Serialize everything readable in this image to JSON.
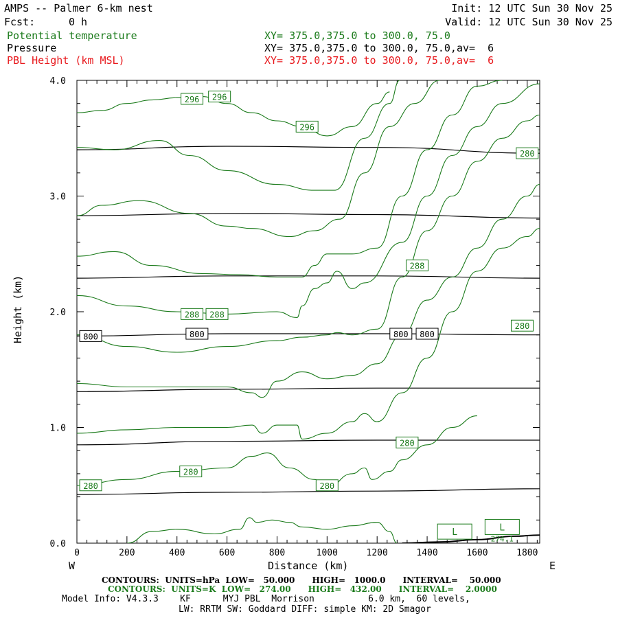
{
  "header": {
    "title": "AMPS -- Palmer 6-km nest",
    "fcst_label": "Fcst:",
    "fcst_value": "0 h",
    "init": "Init: 12 UTC Sun 30 Nov 25",
    "valid": "Valid: 12 UTC Sun 30 Nov 25",
    "fields": [
      {
        "name": "Potential temperature",
        "xy": "XY= 375.0,375.0 to 300.0, 75.0",
        "color": "#1a7a1a"
      },
      {
        "name": "Pressure",
        "xy": "XY= 375.0,375.0 to 300.0, 75.0,av=  6",
        "color": "#000000"
      },
      {
        "name": "PBL Height (km MSL)",
        "xy": "XY= 375.0,375.0 to 300.0, 75.0,av=  6",
        "color": "#e8181c"
      }
    ]
  },
  "footer": {
    "contours_p": "CONTOURS:  UNITS=hPa  LOW=   50.000      HIGH=   1000.0      INTERVAL=    50.000",
    "contours_t": "CONTOURS:  UNITS=K  LOW=   274.00      HIGH=   432.00      INTERVAL=    2.0000",
    "model_info": "Model Info: V4.3.3    KF      MYJ PBL  Morrison          6.0 km,  60 levels,",
    "model_info2": "LW: RRTM SW: Goddard DIFF: simple KM: 2D Smagor"
  },
  "chart_data": {
    "type": "line",
    "xlabel": "Distance (km)",
    "ylabel": "Height (km)",
    "xlim": [
      0,
      1850
    ],
    "ylim": [
      0,
      4.0
    ],
    "x_ticks": [
      "0",
      "200",
      "400",
      "600",
      "800",
      "1000",
      "1200",
      "1400",
      "1600",
      "1800"
    ],
    "y_ticks": [
      "0.0",
      "1.0",
      "2.0",
      "3.0",
      "4.0"
    ],
    "x_end_labels": {
      "left": "W",
      "right": "E"
    },
    "pressure_contours": {
      "color": "#000000",
      "lines": [
        {
          "x": [
            0,
            600,
            1200,
            1850
          ],
          "y": [
            0.42,
            0.44,
            0.45,
            0.47
          ]
        },
        {
          "x": [
            0,
            600,
            1200,
            1850
          ],
          "y": [
            0.85,
            0.88,
            0.89,
            0.89
          ]
        },
        {
          "x": [
            0,
            600,
            1200,
            1850
          ],
          "y": [
            1.31,
            1.33,
            1.34,
            1.34
          ]
        },
        {
          "x": [
            0,
            600,
            1200,
            1850
          ],
          "y": [
            1.79,
            1.81,
            1.81,
            1.8
          ]
        },
        {
          "x": [
            0,
            600,
            1200,
            1850
          ],
          "y": [
            2.29,
            2.31,
            2.31,
            2.29
          ]
        },
        {
          "x": [
            0,
            600,
            1200,
            1850
          ],
          "y": [
            2.83,
            2.85,
            2.84,
            2.81
          ]
        },
        {
          "x": [
            0,
            600,
            1200,
            1850
          ],
          "y": [
            3.4,
            3.43,
            3.42,
            3.37
          ]
        }
      ],
      "labels": [
        {
          "text": "800",
          "x": 55,
          "y": 1.79
        },
        {
          "text": "800",
          "x": 480,
          "y": 1.81
        },
        {
          "text": "800",
          "x": 1295,
          "y": 1.81
        },
        {
          "text": "800",
          "x": 1400,
          "y": 1.81
        }
      ]
    },
    "theta_contours": {
      "color": "#1a7a1a",
      "lines": [
        {
          "x": [
            200,
            300,
            400,
            550,
            650,
            690,
            720,
            780,
            850,
            900,
            1000,
            1100,
            1200,
            1250,
            1280
          ],
          "y": [
            0.0,
            0.1,
            0.12,
            0.08,
            0.12,
            0.22,
            0.18,
            0.2,
            0.18,
            0.14,
            0.12,
            0.15,
            0.18,
            0.1,
            0.0
          ]
        },
        {
          "x": [
            0,
            200,
            400,
            600,
            700,
            760,
            850,
            950,
            1000,
            1100,
            1150,
            1180,
            1250,
            1300,
            1400,
            1500,
            1600
          ],
          "y": [
            0.5,
            0.55,
            0.62,
            0.65,
            0.75,
            0.78,
            0.65,
            0.55,
            0.48,
            0.6,
            0.65,
            0.55,
            0.62,
            0.72,
            0.85,
            1.0,
            1.1
          ]
        },
        {
          "x": [
            0,
            200,
            400,
            600,
            700,
            740,
            800,
            880,
            900,
            1000,
            1100,
            1150,
            1200,
            1300,
            1400,
            1500,
            1600,
            1700,
            1800,
            1850
          ],
          "y": [
            0.95,
            0.98,
            1.0,
            1.0,
            1.02,
            0.95,
            1.02,
            1.02,
            0.9,
            0.95,
            1.05,
            1.12,
            1.05,
            1.3,
            1.6,
            2.0,
            2.35,
            2.55,
            2.65,
            2.72
          ]
        },
        {
          "x": [
            0,
            200,
            400,
            600,
            700,
            740,
            800,
            900,
            1000,
            1100,
            1200,
            1300,
            1400,
            1500,
            1600,
            1700,
            1800,
            1850
          ],
          "y": [
            1.38,
            1.35,
            1.35,
            1.35,
            1.3,
            1.26,
            1.4,
            1.48,
            1.42,
            1.45,
            1.55,
            1.8,
            2.1,
            2.3,
            2.55,
            2.8,
            3.0,
            3.1
          ]
        },
        {
          "x": [
            0,
            200,
            400,
            600,
            800,
            900,
            1000,
            1040,
            1100,
            1200,
            1300,
            1400,
            1500,
            1600,
            1700,
            1800,
            1850
          ],
          "y": [
            1.8,
            1.7,
            1.65,
            1.7,
            1.75,
            1.78,
            1.8,
            1.82,
            1.8,
            1.85,
            2.3,
            2.7,
            3.0,
            3.3,
            3.5,
            3.65,
            3.7
          ]
        },
        {
          "x": [
            0,
            200,
            400,
            600,
            800,
            880,
            900,
            950,
            1000,
            1040,
            1100,
            1150,
            1300,
            1400,
            1500,
            1600,
            1700,
            1850
          ],
          "y": [
            2.14,
            2.05,
            2.0,
            1.98,
            2.0,
            1.95,
            2.05,
            2.2,
            2.25,
            2.35,
            2.2,
            2.25,
            2.6,
            3.0,
            3.35,
            3.6,
            3.8,
            3.97
          ]
        },
        {
          "x": [
            0,
            150,
            300,
            500,
            650,
            800,
            900,
            950,
            1000,
            1100,
            1200,
            1300,
            1400,
            1500,
            1600,
            1700
          ],
          "y": [
            2.48,
            2.52,
            2.4,
            2.33,
            2.32,
            2.3,
            2.3,
            2.4,
            2.5,
            2.5,
            2.55,
            3.0,
            3.4,
            3.7,
            3.95,
            4.0
          ]
        },
        {
          "x": [
            0,
            100,
            250,
            450,
            600,
            700,
            850,
            950,
            1050,
            1150,
            1250,
            1350,
            1450
          ],
          "y": [
            2.83,
            2.92,
            2.96,
            2.85,
            2.74,
            2.72,
            2.65,
            2.7,
            2.8,
            3.2,
            3.6,
            3.8,
            4.0
          ]
        },
        {
          "x": [
            0,
            150,
            330,
            450,
            600,
            800,
            950,
            1030,
            1150,
            1250,
            1290
          ],
          "y": [
            3.42,
            3.4,
            3.48,
            3.35,
            3.22,
            3.1,
            3.05,
            3.05,
            3.5,
            3.8,
            4.0
          ]
        },
        {
          "x": [
            0,
            100,
            200,
            300,
            400,
            500,
            600,
            700,
            800,
            900,
            1000,
            1100,
            1200,
            1250
          ],
          "y": [
            3.72,
            3.74,
            3.8,
            3.83,
            3.85,
            3.86,
            3.8,
            3.72,
            3.65,
            3.6,
            3.52,
            3.6,
            3.8,
            3.9
          ]
        }
      ],
      "labels": [
        {
          "text": "296",
          "x": 460,
          "y": 3.84
        },
        {
          "text": "296",
          "x": 570,
          "y": 3.86
        },
        {
          "text": "296",
          "x": 920,
          "y": 3.6
        },
        {
          "text": "280",
          "x": 1800,
          "y": 3.37
        },
        {
          "text": "288",
          "x": 1360,
          "y": 2.4
        },
        {
          "text": "288",
          "x": 460,
          "y": 1.98
        },
        {
          "text": "288",
          "x": 560,
          "y": 1.98
        },
        {
          "text": "280",
          "x": 1780,
          "y": 1.88
        },
        {
          "text": "280",
          "x": 1320,
          "y": 0.87
        },
        {
          "text": "280",
          "x": 55,
          "y": 0.5
        },
        {
          "text": "280",
          "x": 455,
          "y": 0.62
        },
        {
          "text": "280",
          "x": 1000,
          "y": 0.5
        }
      ],
      "low_markers": [
        {
          "text": "L",
          "x": 1510,
          "y": 0.1
        },
        {
          "text": "L",
          "x": 1700,
          "y": 0.14
        }
      ],
      "low_values": [
        {
          "text": "274.1",
          "x": 1700,
          "y": 0.04
        }
      ]
    },
    "terrain": {
      "x": [
        1300,
        1450,
        1600,
        1750,
        1850
      ],
      "y": [
        0.0,
        0.01,
        0.03,
        0.06,
        0.07
      ]
    }
  }
}
